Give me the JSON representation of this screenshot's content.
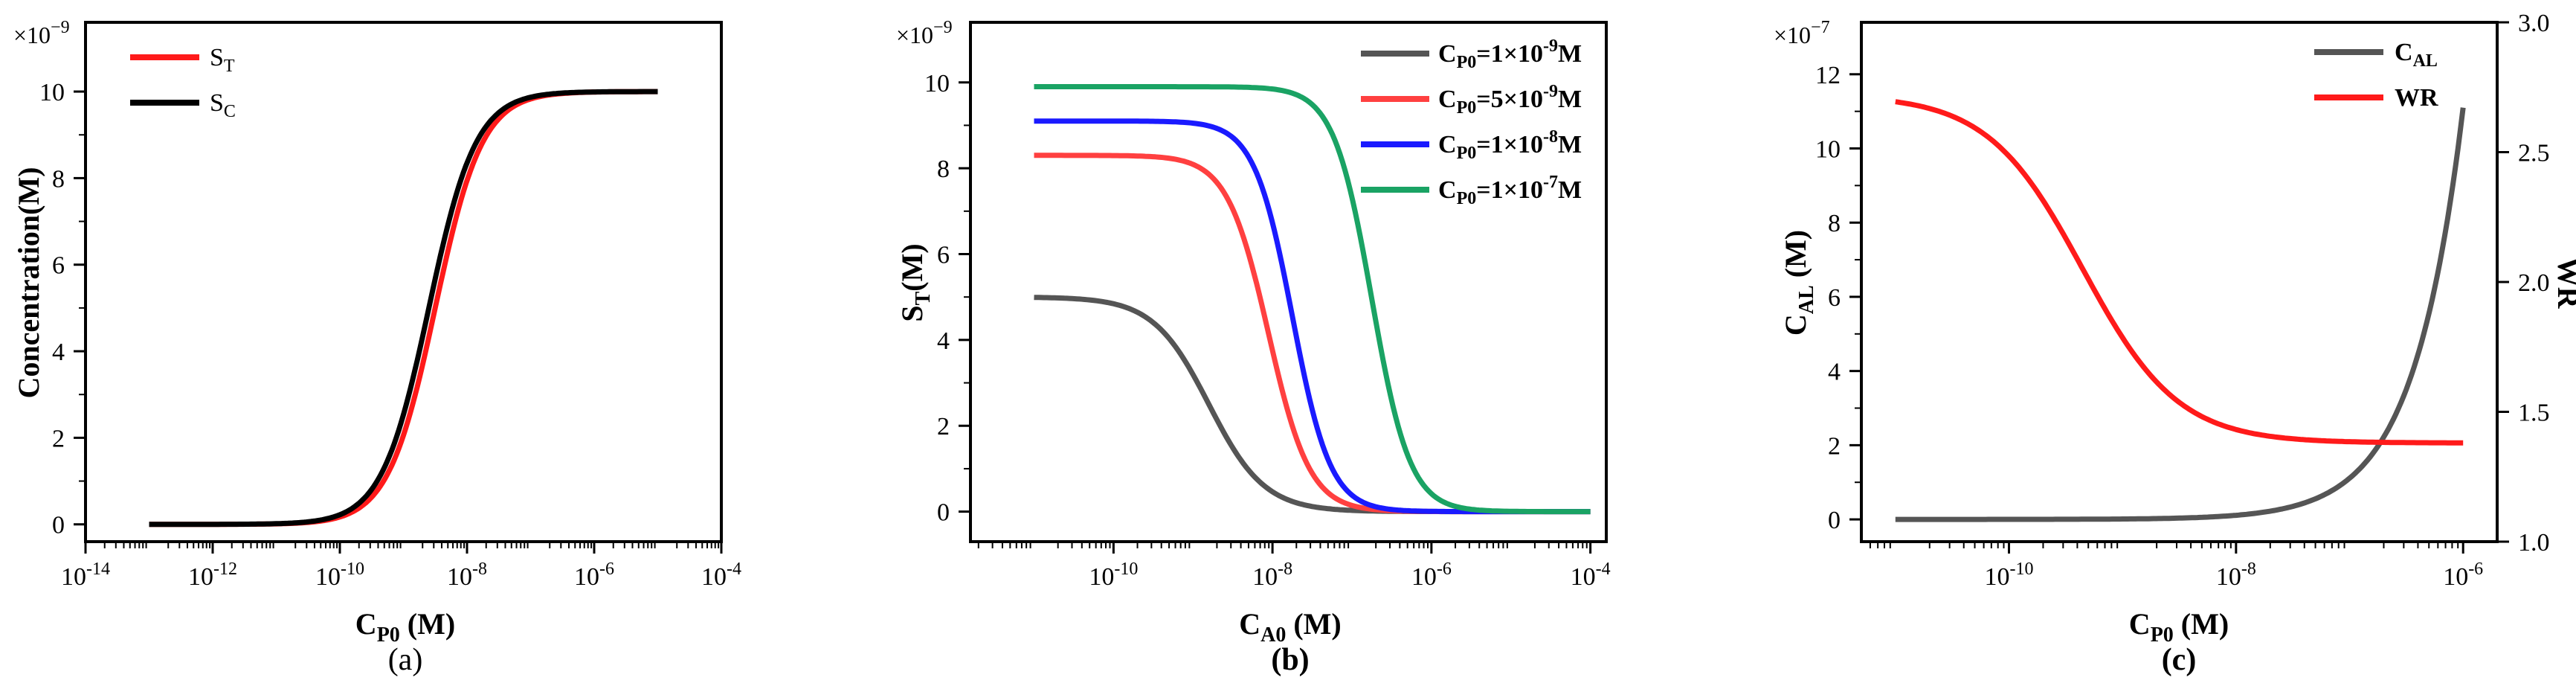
{
  "chart_data": [
    {
      "id": "a",
      "type": "line",
      "panel_label": "(a)",
      "ylabel": "Concentration(M)",
      "xlabel_main": "C",
      "xlabel_sub": "P0",
      "xlabel_unit": " (M)",
      "y_multiplier": "×10",
      "y_multiplier_exp": "−9",
      "x_scale": "log",
      "xlim_exp": [
        -14,
        -4
      ],
      "xticks_exp": [
        -14,
        -12,
        -10,
        -8,
        -6,
        -4
      ],
      "ylim": [
        -0.4,
        11.6
      ],
      "yticks": [
        0,
        2,
        4,
        6,
        8,
        10
      ],
      "legend_position": "top-left",
      "series": [
        {
          "name": "S",
          "sub": "T",
          "color": "#ff1a1a",
          "kind": "sigmoid",
          "base": 0,
          "top": 10,
          "mid_exp": -8.5,
          "w": 0.37
        },
        {
          "name": "S",
          "sub": "C",
          "color": "#000000",
          "kind": "sigmoid",
          "base": 0,
          "top": 10,
          "mid_exp": -8.6,
          "w": 0.37
        }
      ],
      "x_range_exp": [
        -13,
        -5
      ]
    },
    {
      "id": "b",
      "type": "line",
      "panel_label": "(b)",
      "ylabel_main": "S",
      "ylabel_sub": "T",
      "ylabel_unit": "(M)",
      "xlabel_main": "C",
      "xlabel_sub": "A0",
      "xlabel_unit": " (M)",
      "y_multiplier": "×10",
      "y_multiplier_exp": "−9",
      "x_scale": "log",
      "xlim_exp": [
        -11.8,
        -3.8
      ],
      "xticks_exp": [
        -10,
        -8,
        -6,
        -4
      ],
      "ylim": [
        -0.7,
        11.4
      ],
      "yticks": [
        0,
        2,
        4,
        6,
        8,
        10
      ],
      "legend_position": "top-right",
      "series": [
        {
          "label": "C",
          "label_sub": "P0",
          "label_val": "=1×10",
          "label_exp": "-9",
          "label_unit": "M",
          "color": "#555555",
          "kind": "decay",
          "top": 5.0,
          "mid_exp": -8.8,
          "w": 0.35
        },
        {
          "label": "C",
          "label_sub": "P0",
          "label_val": "=5×10",
          "label_exp": "-9",
          "label_unit": "M",
          "color": "#ff4040",
          "kind": "decay",
          "top": 8.3,
          "mid_exp": -8.05,
          "w": 0.26
        },
        {
          "label": "C",
          "label_sub": "P0",
          "label_val": "=1×10",
          "label_exp": "-8",
          "label_unit": "M",
          "color": "#1a1aff",
          "kind": "decay",
          "top": 9.1,
          "mid_exp": -7.75,
          "w": 0.24
        },
        {
          "label": "C",
          "label_sub": "P0",
          "label_val": "=1×10",
          "label_exp": "-7",
          "label_unit": "M",
          "color": "#1aa364",
          "kind": "decay",
          "top": 9.9,
          "mid_exp": -6.75,
          "w": 0.24
        }
      ],
      "x_range_exp": [
        -11,
        -4
      ]
    },
    {
      "id": "c",
      "type": "line",
      "panel_label": "(c)",
      "ylabel_main": "C",
      "ylabel_sub": "AL",
      "ylabel_unit": " (M)",
      "y2label": "WR",
      "xlabel_main": "C",
      "xlabel_sub": "P0",
      "xlabel_unit": " (M)",
      "y_multiplier": "×10",
      "y_multiplier_exp": "−7",
      "x_scale": "log",
      "xlim_exp": [
        -11.3,
        -5.7
      ],
      "xticks_exp": [
        -10,
        -8,
        -6
      ],
      "ylim": [
        -0.6,
        13.4
      ],
      "yticks": [
        0,
        2,
        4,
        6,
        8,
        10,
        12
      ],
      "y2lim": [
        1.0,
        3.0
      ],
      "y2ticks": [
        "1.0",
        "1.5",
        "2.0",
        "2.5",
        "3.0"
      ],
      "legend_position": "top-right",
      "series": [
        {
          "name": "C",
          "sub": "AL",
          "color": "#555555",
          "axis": "left",
          "kind": "linear",
          "slope": 11.1,
          "x1_exp": -6
        },
        {
          "name": "WR",
          "sub": "",
          "color": "#ff1a1a",
          "axis": "right",
          "kind": "decay",
          "base": 1.38,
          "top": 2.72,
          "mid_exp": -9.35,
          "w": 0.42
        }
      ],
      "x_range_exp": [
        -11,
        -6
      ]
    }
  ]
}
